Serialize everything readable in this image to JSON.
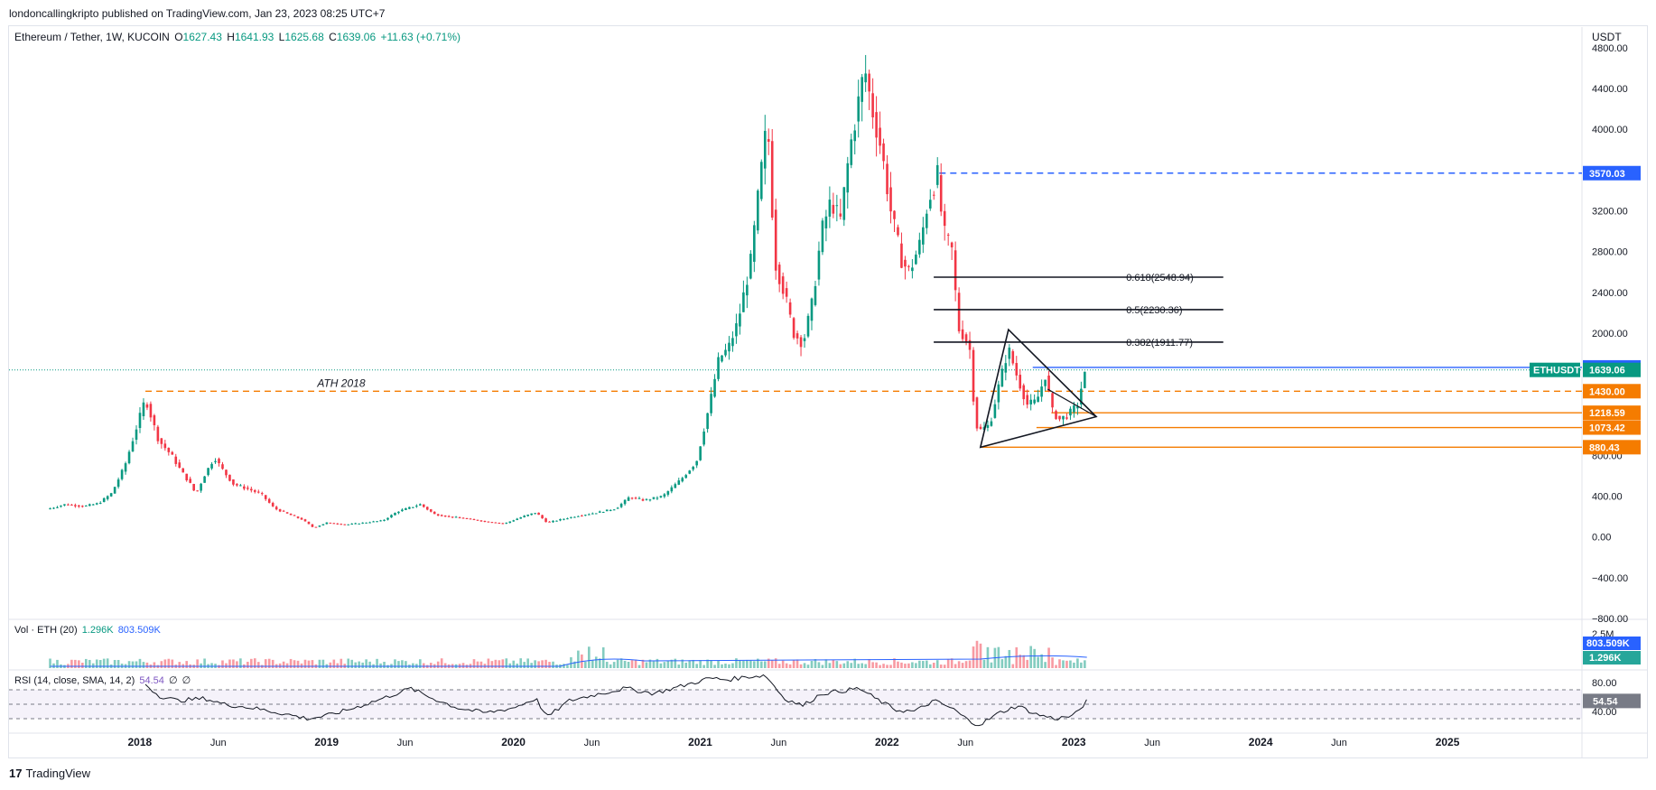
{
  "attribution": "londoncallingkripto published on TradingView.com, Jan 23, 2023 08:25 UTC+7",
  "footer": {
    "logo_glyph": "17",
    "brand": "TradingView"
  },
  "legend": {
    "symbol": "Ethereum / Tether, 1W, KUCOIN",
    "open_label": "O",
    "open": "1627.43",
    "high_label": "H",
    "high": "1641.93",
    "low_label": "L",
    "low": "1625.68",
    "close_label": "C",
    "close": "1639.06",
    "change": "+11.63 (+0.71%)"
  },
  "volume_legend": {
    "label": "Vol · ETH (20)",
    "v1": "1.296K",
    "v2": "803.509K"
  },
  "rsi_legend": {
    "label": "RSI (14, close, SMA, 14, 2)",
    "v1": "54.54",
    "v2": "∅",
    "v3": "∅"
  },
  "chart_data": {
    "type": "candlestick",
    "timeframe": "1W",
    "currency": "USDT",
    "y_ticks": [
      4800,
      4400,
      4000,
      3600,
      3200,
      2800,
      2400,
      2000,
      1600,
      1200,
      800,
      400,
      0,
      -400,
      -800
    ],
    "y_tick_labels": [
      "4800.00",
      "4400.00",
      "4000.00",
      "",
      "3200.00",
      "2800.00",
      "2400.00",
      "2000.00",
      "",
      "",
      "800.00",
      "400.00",
      "0.00",
      "−400.00",
      "−800.00"
    ],
    "ylim": [
      -800,
      4950
    ],
    "x_ticks": [
      {
        "t": 2018.0,
        "label": "2018"
      },
      {
        "t": 2018.42,
        "label": "Jun"
      },
      {
        "t": 2019.0,
        "label": "2019"
      },
      {
        "t": 2019.42,
        "label": "Jun"
      },
      {
        "t": 2020.0,
        "label": "2020"
      },
      {
        "t": 2020.42,
        "label": "Jun"
      },
      {
        "t": 2021.0,
        "label": "2021"
      },
      {
        "t": 2021.42,
        "label": "Jun"
      },
      {
        "t": 2022.0,
        "label": "2022"
      },
      {
        "t": 2022.42,
        "label": "Jun"
      },
      {
        "t": 2023.0,
        "label": "2023"
      },
      {
        "t": 2023.42,
        "label": "Jun"
      },
      {
        "t": 2024.0,
        "label": "2024"
      },
      {
        "t": 2024.42,
        "label": "Jun"
      },
      {
        "t": 2025.0,
        "label": "2025"
      }
    ],
    "xlim": [
      2017.3,
      2025.72
    ],
    "price_path": [
      [
        2017.52,
        280
      ],
      [
        2017.6,
        320
      ],
      [
        2017.7,
        300
      ],
      [
        2017.78,
        330
      ],
      [
        2017.85,
        430
      ],
      [
        2017.92,
        700
      ],
      [
        2017.97,
        1000
      ],
      [
        2018.03,
        1360
      ],
      [
        2018.1,
        950
      ],
      [
        2018.17,
        800
      ],
      [
        2018.22,
        650
      ],
      [
        2018.27,
        520
      ],
      [
        2018.3,
        420
      ],
      [
        2018.35,
        620
      ],
      [
        2018.4,
        780
      ],
      [
        2018.45,
        640
      ],
      [
        2018.5,
        520
      ],
      [
        2018.58,
        470
      ],
      [
        2018.65,
        420
      ],
      [
        2018.72,
        280
      ],
      [
        2018.8,
        220
      ],
      [
        2018.87,
        170
      ],
      [
        2018.93,
        90
      ],
      [
        2019.0,
        140
      ],
      [
        2019.1,
        120
      ],
      [
        2019.2,
        140
      ],
      [
        2019.3,
        160
      ],
      [
        2019.38,
        250
      ],
      [
        2019.45,
        290
      ],
      [
        2019.5,
        320
      ],
      [
        2019.58,
        220
      ],
      [
        2019.65,
        200
      ],
      [
        2019.75,
        180
      ],
      [
        2019.85,
        150
      ],
      [
        2019.95,
        130
      ],
      [
        2020.05,
        200
      ],
      [
        2020.12,
        240
      ],
      [
        2020.18,
        140
      ],
      [
        2020.25,
        170
      ],
      [
        2020.35,
        210
      ],
      [
        2020.45,
        240
      ],
      [
        2020.55,
        280
      ],
      [
        2020.62,
        390
      ],
      [
        2020.7,
        360
      ],
      [
        2020.8,
        400
      ],
      [
        2020.9,
        570
      ],
      [
        2020.98,
        740
      ],
      [
        2021.05,
        1300
      ],
      [
        2021.1,
        1750
      ],
      [
        2021.15,
        1850
      ],
      [
        2021.2,
        2100
      ],
      [
        2021.27,
        2700
      ],
      [
        2021.32,
        3500
      ],
      [
        2021.36,
        4100
      ],
      [
        2021.4,
        2700
      ],
      [
        2021.45,
        2400
      ],
      [
        2021.5,
        2000
      ],
      [
        2021.55,
        1900
      ],
      [
        2021.6,
        2300
      ],
      [
        2021.65,
        3000
      ],
      [
        2021.7,
        3300
      ],
      [
        2021.75,
        3100
      ],
      [
        2021.8,
        3800
      ],
      [
        2021.85,
        4300
      ],
      [
        2021.88,
        4600
      ],
      [
        2021.92,
        4200
      ],
      [
        2021.97,
        3800
      ],
      [
        2022.02,
        3200
      ],
      [
        2022.08,
        2700
      ],
      [
        2022.12,
        2600
      ],
      [
        2022.18,
        2900
      ],
      [
        2022.22,
        3300
      ],
      [
        2022.27,
        3550
      ],
      [
        2022.3,
        3000
      ],
      [
        2022.35,
        2800
      ],
      [
        2022.38,
        2050
      ],
      [
        2022.42,
        1950
      ],
      [
        2022.45,
        1800
      ],
      [
        2022.47,
        1100
      ],
      [
        2022.5,
        1050
      ],
      [
        2022.55,
        1100
      ],
      [
        2022.6,
        1500
      ],
      [
        2022.65,
        1850
      ],
      [
        2022.7,
        1550
      ],
      [
        2022.75,
        1300
      ],
      [
        2022.8,
        1330
      ],
      [
        2022.85,
        1600
      ],
      [
        2022.88,
        1250
      ],
      [
        2022.92,
        1150
      ],
      [
        2022.97,
        1200
      ],
      [
        2023.02,
        1300
      ],
      [
        2023.05,
        1550
      ],
      [
        2023.07,
        1639
      ]
    ],
    "horizontal_levels": [
      {
        "price": 3570.03,
        "label": "3570.03",
        "style": "dashed",
        "color": "#2962ff",
        "from": 2022.28
      },
      {
        "price": 1663.71,
        "label": "1663.71",
        "style": "solid",
        "color": "#2962ff",
        "from": 2022.78
      },
      {
        "price": 1430.0,
        "label": "1430.00",
        "style": "dashed",
        "color": "#f57c00",
        "from": 2018.03,
        "note": "ATH 2018"
      },
      {
        "price": 1218.59,
        "label": "1218.59",
        "style": "solid",
        "color": "#f57c00",
        "from": 2022.88
      },
      {
        "price": 1073.42,
        "label": "1073.42",
        "style": "solid",
        "color": "#f57c00",
        "from": 2022.8
      },
      {
        "price": 880.43,
        "label": "880.43",
        "style": "solid",
        "color": "#f57c00",
        "from": 2022.5
      }
    ],
    "current_price": {
      "symbol": "ETHUSDT",
      "price": 1639.06,
      "color": "#089981"
    },
    "fib_levels": [
      {
        "ratio_label": "0.618(2548.94)",
        "price": 2548.94
      },
      {
        "ratio_label": "0.5(2230.36)",
        "price": 2230.36
      },
      {
        "ratio_label": "0.382(1911.77)",
        "price": 1911.77
      }
    ],
    "triangle": [
      [
        2022.65,
        2035
      ],
      [
        2023.12,
        1180
      ],
      [
        2022.5,
        880
      ]
    ],
    "volume": {
      "last_label": "803.509K",
      "vol_label": "1.296K",
      "scale_label": "2.5M"
    },
    "rsi": {
      "ticks": [
        80,
        40
      ],
      "bands": [
        70,
        50,
        30
      ],
      "last": "54.54",
      "series": [
        [
          2018.03,
          78
        ],
        [
          2018.1,
          62
        ],
        [
          2018.2,
          55
        ],
        [
          2018.35,
          58
        ],
        [
          2018.45,
          50
        ],
        [
          2018.6,
          45
        ],
        [
          2018.75,
          38
        ],
        [
          2018.9,
          30
        ],
        [
          2019.0,
          34
        ],
        [
          2019.15,
          45
        ],
        [
          2019.3,
          58
        ],
        [
          2019.45,
          72
        ],
        [
          2019.55,
          60
        ],
        [
          2019.7,
          45
        ],
        [
          2019.85,
          38
        ],
        [
          2020.0,
          45
        ],
        [
          2020.12,
          58
        ],
        [
          2020.18,
          32
        ],
        [
          2020.3,
          55
        ],
        [
          2020.45,
          64
        ],
        [
          2020.6,
          72
        ],
        [
          2020.75,
          65
        ],
        [
          2020.9,
          75
        ],
        [
          2021.05,
          86
        ],
        [
          2021.15,
          84
        ],
        [
          2021.25,
          88
        ],
        [
          2021.35,
          90
        ],
        [
          2021.45,
          58
        ],
        [
          2021.55,
          48
        ],
        [
          2021.65,
          65
        ],
        [
          2021.75,
          68
        ],
        [
          2021.85,
          72
        ],
        [
          2021.95,
          56
        ],
        [
          2022.05,
          42
        ],
        [
          2022.15,
          40
        ],
        [
          2022.25,
          55
        ],
        [
          2022.35,
          44
        ],
        [
          2022.45,
          25
        ],
        [
          2022.5,
          22
        ],
        [
          2022.6,
          38
        ],
        [
          2022.7,
          48
        ],
        [
          2022.8,
          36
        ],
        [
          2022.9,
          30
        ],
        [
          2023.0,
          34
        ],
        [
          2023.07,
          54.54
        ]
      ]
    }
  }
}
